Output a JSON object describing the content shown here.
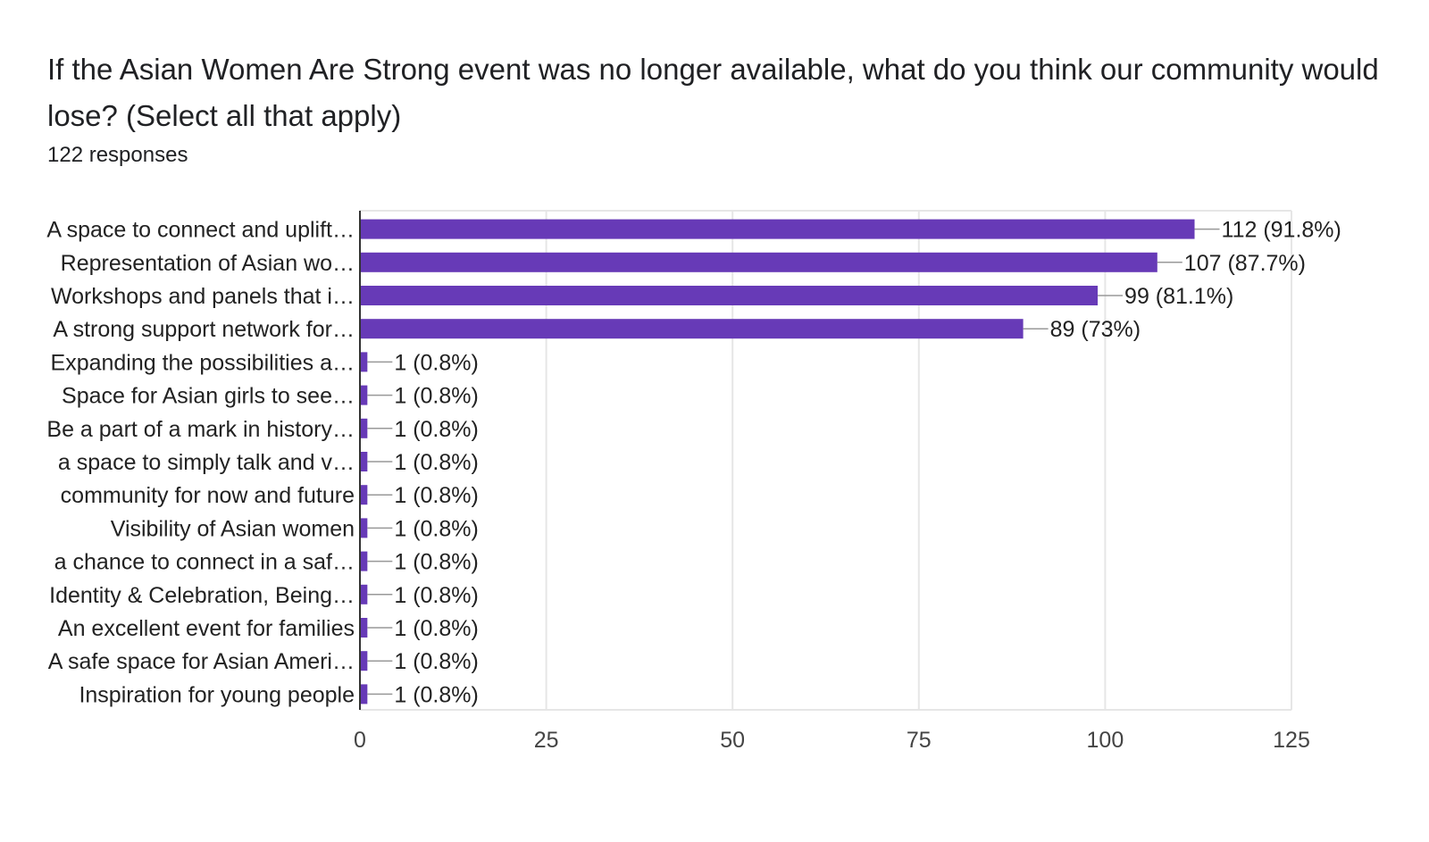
{
  "title": "If the Asian Women Are Strong event was no longer available, what do you think our community would lose? (Select all that apply)",
  "responses": "122 responses",
  "colors": {
    "bar": "#673ab7",
    "grid": "#e6e6e6",
    "axis": "#333333",
    "leader": "#999999"
  },
  "chart_data": {
    "type": "bar",
    "orientation": "horizontal",
    "categories": [
      "A space to connect and uplift…",
      "Representation of Asian wo…",
      "Workshops and panels that i…",
      "A strong support network for…",
      "Expanding the possibilities a…",
      "Space for Asian girls to see…",
      "Be a part of a mark in history…",
      "a space to simply talk and v…",
      "community for now and future",
      "Visibility of Asian women",
      "a chance to connect in a saf…",
      "Identity & Celebration, Being…",
      "An excellent event for families",
      "A safe space for Asian Ameri…",
      "Inspiration for young people"
    ],
    "values": [
      112,
      107,
      99,
      89,
      1,
      1,
      1,
      1,
      1,
      1,
      1,
      1,
      1,
      1,
      1
    ],
    "labels": [
      "112 (91.8%)",
      "107 (87.7%)",
      "99 (81.1%)",
      "89 (73%)",
      "1 (0.8%)",
      "1 (0.8%)",
      "1 (0.8%)",
      "1 (0.8%)",
      "1 (0.8%)",
      "1 (0.8%)",
      "1 (0.8%)",
      "1 (0.8%)",
      "1 (0.8%)",
      "1 (0.8%)",
      "1 (0.8%)"
    ],
    "xticks": [
      "0",
      "25",
      "50",
      "75",
      "100",
      "125"
    ],
    "xlim": [
      0,
      125
    ],
    "grid": true
  }
}
